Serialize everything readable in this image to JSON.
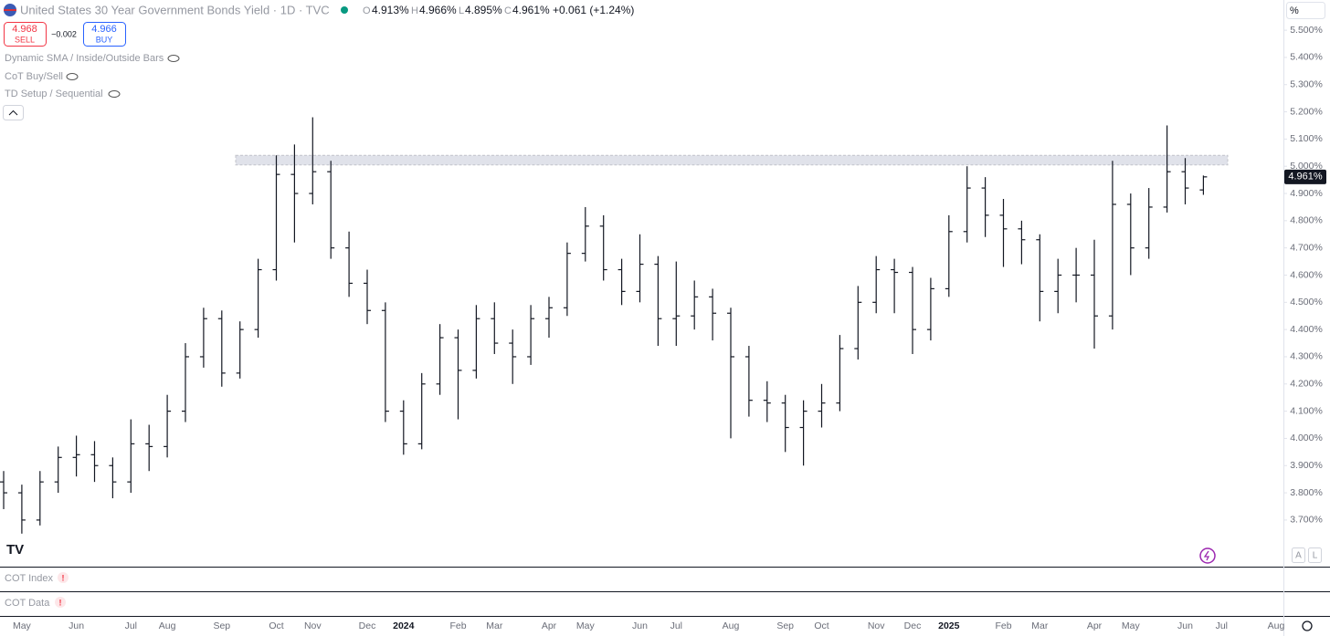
{
  "header": {
    "title": "United States 30 Year Government Bonds Yield · 1D · TVC",
    "open_label": "O",
    "open": "4.913%",
    "high_label": "H",
    "high": "4.966%",
    "low_label": "L",
    "low": "4.895%",
    "close_label": "C",
    "close": "4.961%",
    "change": "+0.061 (+1.24%)"
  },
  "trade": {
    "sell_price": "4.968",
    "sell": "SELL",
    "spread": "−0.002",
    "buy_price": "4.966",
    "buy": "BUY"
  },
  "indicators": [
    "Dynamic SMA / Inside/Outside Bars",
    "CoT Buy/Sell",
    "TD Setup / Sequential"
  ],
  "panes": [
    "COT Index",
    "COT Data"
  ],
  "scale_unit": "%",
  "scale_buttons": [
    "A",
    "L"
  ],
  "chart_data": {
    "type": "ohlc",
    "color": "#131722",
    "categories": [
      null,
      "May",
      null,
      null,
      "Jun",
      null,
      null,
      "Jul",
      null,
      "Aug",
      null,
      null,
      "Sep",
      null,
      null,
      "Oct",
      null,
      "Nov",
      null,
      null,
      "Dec",
      null,
      "2024",
      null,
      null,
      "Feb",
      null,
      "Mar",
      null,
      null,
      "Apr",
      null,
      "May",
      null,
      null,
      "Jun",
      null,
      "Jul",
      null,
      null,
      "Aug",
      null,
      null,
      "Sep",
      null,
      "Oct",
      null,
      null,
      "Nov",
      null,
      "Dec",
      null,
      "2025",
      null,
      null,
      "Feb",
      null,
      "Mar",
      null,
      null,
      "Apr",
      null,
      "May",
      null,
      null,
      "Jun",
      null,
      "Jul",
      null,
      null,
      "Aug"
    ],
    "open": [
      3.84,
      3.8,
      3.7,
      3.84,
      3.93,
      3.94,
      3.9,
      3.84,
      3.98,
      3.97,
      4.1,
      4.3,
      4.44,
      4.24,
      4.4,
      4.62,
      4.97,
      4.9,
      4.98,
      4.7,
      4.57,
      4.47,
      4.1,
      3.98,
      4.2,
      4.37,
      4.25,
      4.44,
      4.35,
      4.3,
      4.44,
      4.48,
      4.68,
      4.78,
      4.62,
      4.54,
      4.64,
      4.44,
      4.45,
      4.52,
      4.46,
      4.3,
      4.14,
      4.13,
      4.04,
      4.1,
      4.13,
      4.33,
      4.5,
      4.62,
      4.61,
      4.4,
      4.55,
      4.76,
      4.92,
      4.82,
      4.77,
      4.73,
      4.54,
      4.6,
      4.6,
      4.45,
      4.86,
      4.7,
      4.85,
      4.98,
      4.913,
      null,
      null,
      null,
      null
    ],
    "high": [
      3.88,
      3.83,
      3.88,
      3.97,
      4.01,
      3.99,
      3.93,
      4.07,
      4.05,
      4.16,
      4.35,
      4.48,
      4.47,
      4.43,
      4.66,
      5.04,
      5.08,
      5.18,
      5.02,
      4.76,
      4.62,
      4.5,
      4.14,
      4.24,
      4.42,
      4.4,
      4.49,
      4.5,
      4.4,
      4.49,
      4.52,
      4.72,
      4.85,
      4.82,
      4.66,
      4.75,
      4.67,
      4.65,
      4.58,
      4.55,
      4.48,
      4.34,
      4.21,
      4.16,
      4.14,
      4.2,
      4.38,
      4.56,
      4.67,
      4.66,
      4.63,
      4.59,
      4.82,
      5.0,
      4.96,
      4.88,
      4.8,
      4.75,
      4.66,
      4.7,
      4.73,
      5.02,
      4.9,
      4.92,
      5.15,
      5.03,
      4.966,
      null,
      null,
      null,
      null
    ],
    "low": [
      3.74,
      3.65,
      3.68,
      3.8,
      3.86,
      3.84,
      3.78,
      3.8,
      3.88,
      3.93,
      4.06,
      4.26,
      4.19,
      4.22,
      4.37,
      4.58,
      4.72,
      4.86,
      4.66,
      4.52,
      4.42,
      4.06,
      3.94,
      3.96,
      4.16,
      4.07,
      4.22,
      4.31,
      4.2,
      4.27,
      4.37,
      4.45,
      4.65,
      4.58,
      4.49,
      4.5,
      4.34,
      4.34,
      4.4,
      4.36,
      4.0,
      4.08,
      4.06,
      3.95,
      3.9,
      4.04,
      4.1,
      4.29,
      4.46,
      4.46,
      4.31,
      4.36,
      4.52,
      4.72,
      4.74,
      4.63,
      4.64,
      4.43,
      4.46,
      4.5,
      4.33,
      4.4,
      4.6,
      4.66,
      4.83,
      4.86,
      4.895,
      null,
      null,
      null,
      null
    ],
    "close": [
      3.8,
      3.7,
      3.84,
      3.93,
      3.94,
      3.9,
      3.84,
      3.98,
      3.97,
      4.1,
      4.3,
      4.44,
      4.24,
      4.4,
      4.62,
      4.97,
      4.9,
      4.98,
      4.7,
      4.57,
      4.47,
      4.1,
      3.98,
      4.2,
      4.37,
      4.25,
      4.44,
      4.35,
      4.3,
      4.44,
      4.48,
      4.68,
      4.78,
      4.62,
      4.54,
      4.64,
      4.44,
      4.45,
      4.52,
      4.46,
      4.3,
      4.14,
      4.13,
      4.04,
      4.1,
      4.13,
      4.33,
      4.5,
      4.62,
      4.61,
      4.4,
      4.55,
      4.76,
      4.92,
      4.82,
      4.77,
      4.73,
      4.54,
      4.6,
      4.6,
      4.45,
      4.86,
      4.7,
      4.85,
      4.98,
      4.92,
      4.961,
      null,
      null,
      null,
      null
    ],
    "ylim": [
      3.532,
      5.611
    ],
    "yticks": [
      {
        "value": 3.7,
        "label": "3.700%"
      },
      {
        "value": 3.8,
        "label": "3.800%"
      },
      {
        "value": 3.9,
        "label": "3.900%"
      },
      {
        "value": 4.0,
        "label": "4.000%"
      },
      {
        "value": 4.1,
        "label": "4.100%"
      },
      {
        "value": 4.2,
        "label": "4.200%"
      },
      {
        "value": 4.3,
        "label": "4.300%"
      },
      {
        "value": 4.4,
        "label": "4.400%"
      },
      {
        "value": 4.5,
        "label": "4.500%"
      },
      {
        "value": 4.6,
        "label": "4.600%"
      },
      {
        "value": 4.7,
        "label": "4.700%"
      },
      {
        "value": 4.8,
        "label": "4.800%"
      },
      {
        "value": 4.9,
        "label": "4.900%"
      },
      {
        "value": 5.0,
        "label": "5.000%"
      },
      {
        "value": 5.1,
        "label": "5.100%"
      },
      {
        "value": 5.2,
        "label": "5.200%"
      },
      {
        "value": 5.3,
        "label": "5.300%"
      },
      {
        "value": 5.4,
        "label": "5.400%"
      },
      {
        "value": 5.5,
        "label": "5.500%"
      }
    ],
    "last_value": {
      "value": 4.961,
      "label": "4.961%"
    },
    "zone": [
      5.005,
      5.04
    ],
    "zone_color": "#d9dbe6",
    "grid": false
  }
}
